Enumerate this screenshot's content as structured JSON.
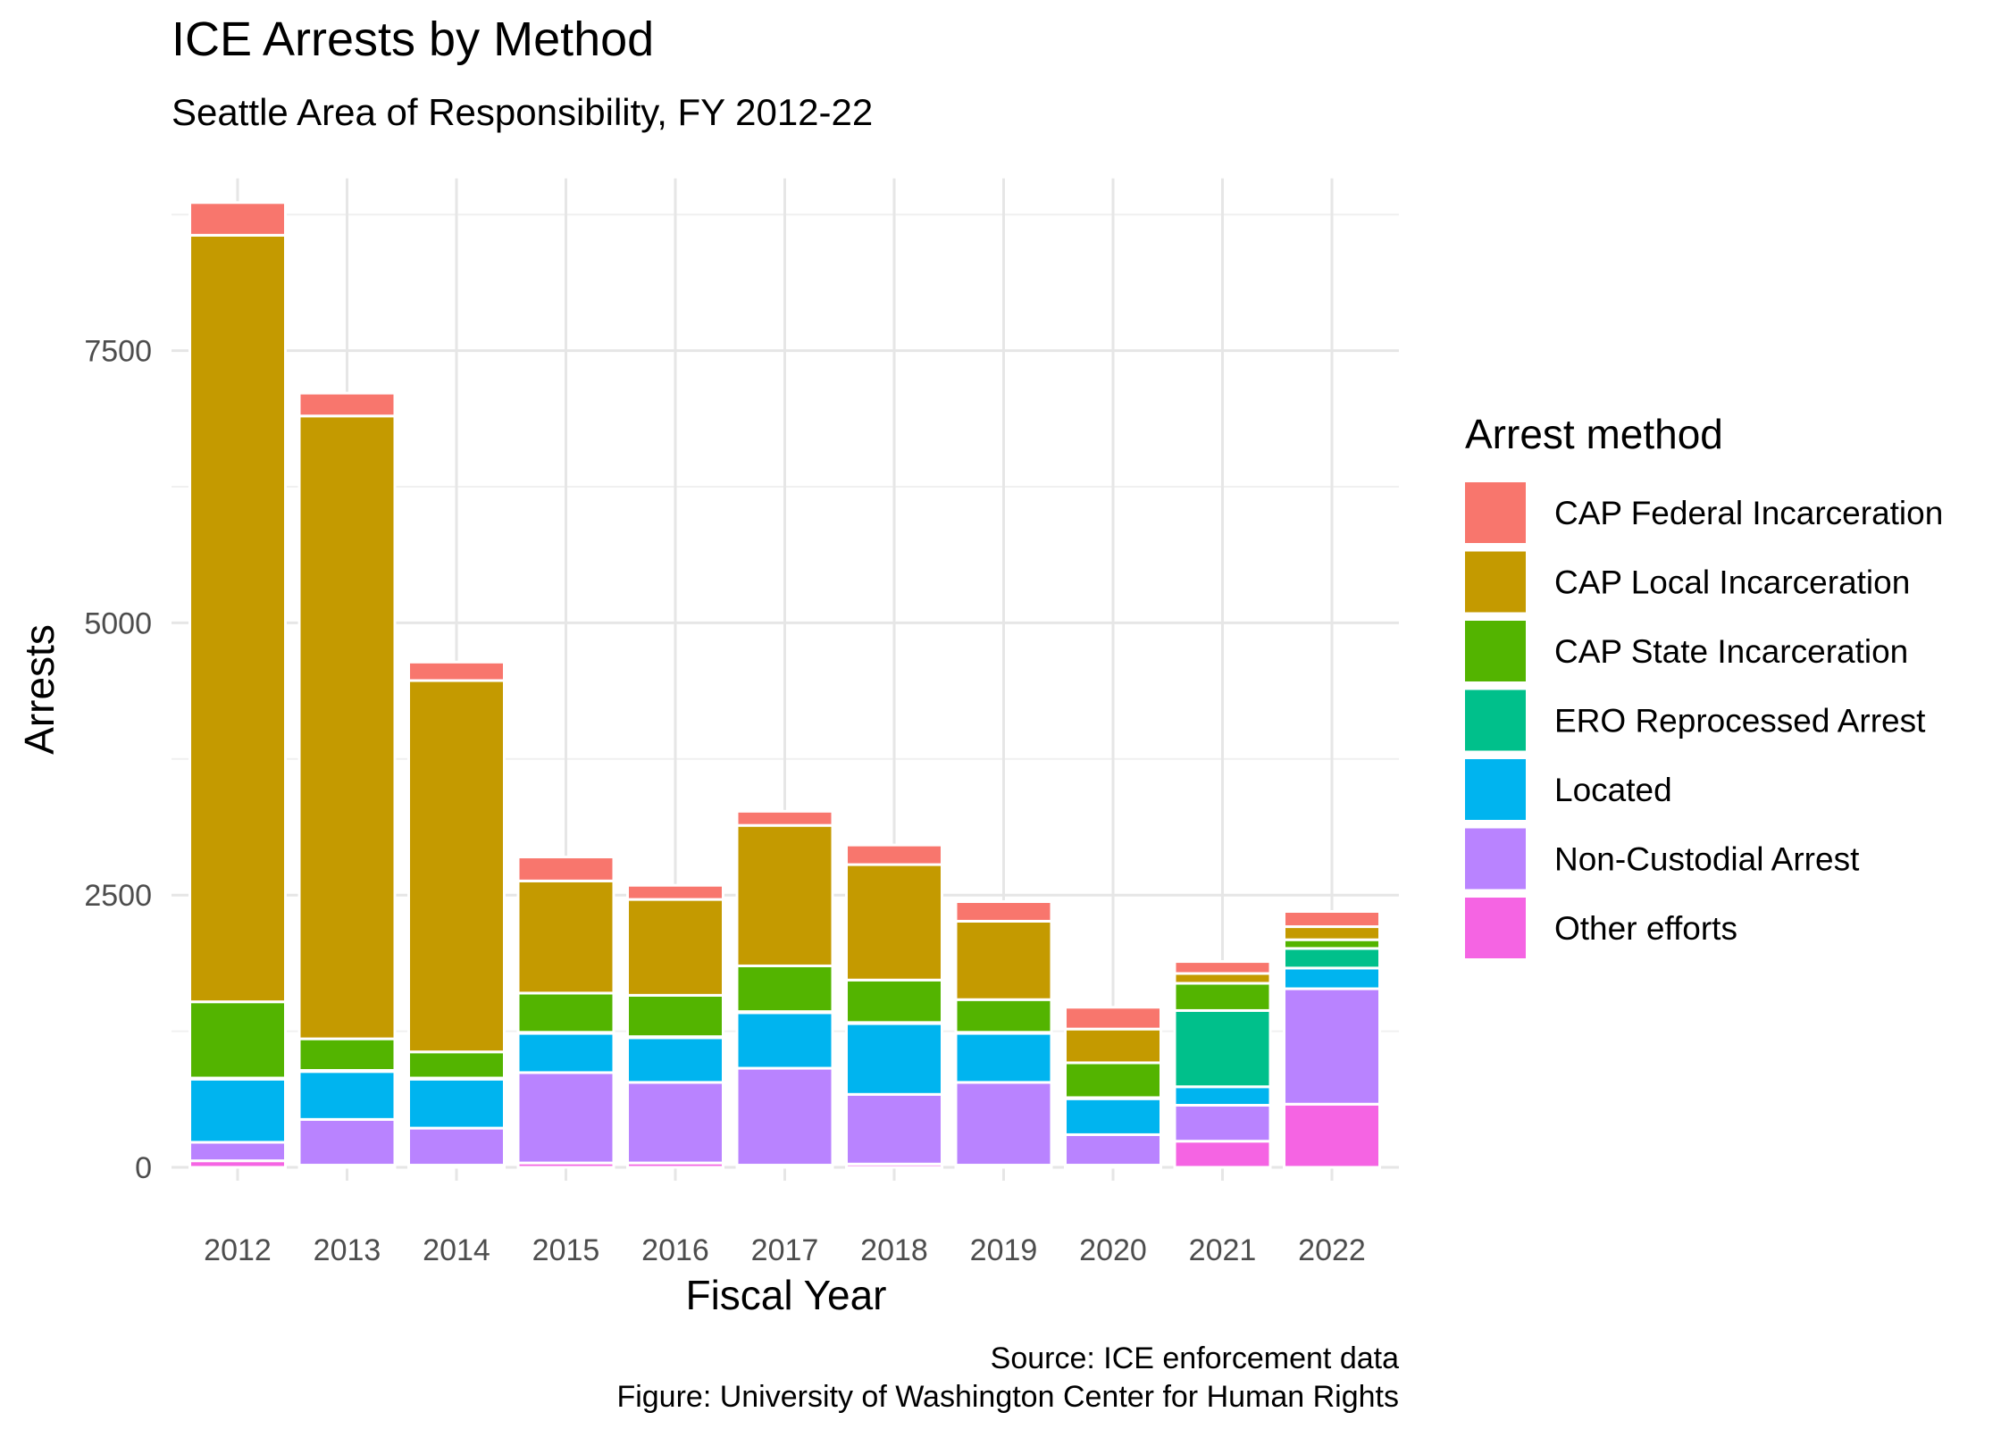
{
  "chart_data": {
    "type": "bar",
    "stacked": true,
    "title": "ICE Arrests by Method",
    "subtitle": "Seattle Area of Responsibility, FY 2012-22",
    "xlabel": "Fiscal Year",
    "ylabel": "Arrests",
    "ylim": [
      0,
      9000
    ],
    "yticks": [
      0,
      2500,
      5000,
      7500
    ],
    "grid": true,
    "legend_title": "Arrest method",
    "legend_position": "right",
    "categories": [
      "2012",
      "2013",
      "2014",
      "2015",
      "2016",
      "2017",
      "2018",
      "2019",
      "2020",
      "2021",
      "2022"
    ],
    "series": [
      {
        "name": "Other efforts",
        "color": "#F564E3",
        "values": [
          60,
          20,
          20,
          40,
          40,
          20,
          30,
          20,
          20,
          240,
          580
        ]
      },
      {
        "name": "Non-Custodial Arrest",
        "color": "#B983FF",
        "values": [
          170,
          420,
          340,
          830,
          740,
          890,
          640,
          760,
          280,
          330,
          1060
        ]
      },
      {
        "name": "Located",
        "color": "#00B4EF",
        "values": [
          580,
          440,
          450,
          360,
          410,
          510,
          650,
          450,
          330,
          170,
          190
        ]
      },
      {
        "name": "ERO Reprocessed Arrest",
        "color": "#00C08B",
        "values": [
          10,
          10,
          10,
          10,
          10,
          10,
          10,
          10,
          10,
          700,
          180
        ]
      },
      {
        "name": "CAP State Incarceration",
        "color": "#53B400",
        "values": [
          700,
          290,
          240,
          360,
          380,
          420,
          390,
          300,
          320,
          250,
          80
        ]
      },
      {
        "name": "CAP Local Incarceration",
        "color": "#C49A00",
        "values": [
          7040,
          5720,
          3410,
          1030,
          880,
          1290,
          1060,
          720,
          310,
          90,
          120
        ]
      },
      {
        "name": "CAP Federal Incarceration",
        "color": "#F8766D",
        "values": [
          300,
          210,
          170,
          220,
          130,
          130,
          180,
          180,
          200,
          110,
          140
        ]
      }
    ],
    "legend_order": [
      "CAP Federal Incarceration",
      "CAP Local Incarceration",
      "CAP State Incarceration",
      "ERO Reprocessed Arrest",
      "Located",
      "Non-Custodial Arrest",
      "Other efforts"
    ]
  },
  "caption": {
    "line1": "Source: ICE enforcement data",
    "line2": "Figure: University of Washington Center for Human Rights"
  }
}
